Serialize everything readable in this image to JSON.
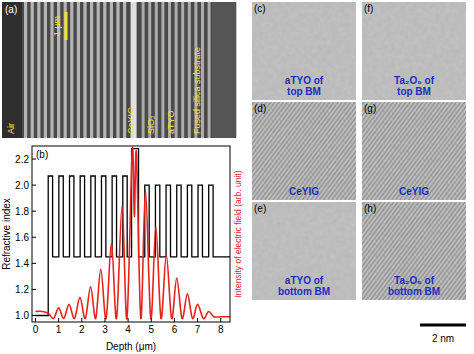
{
  "chart_data": {
    "type": "line",
    "title": "(b)",
    "x_label": "Depth (μm)",
    "y_label": "Refractive index",
    "y2_label": "Intensity of electric field (arb. unit)",
    "xlim": [
      -0.15,
      8.4
    ],
    "xticks": [
      0,
      1,
      2,
      3,
      4,
      5,
      6,
      7,
      8
    ],
    "ylim": [
      0.95,
      2.3
    ],
    "yticks": [
      {
        "value": 1.0,
        "label": "1.0"
      },
      {
        "value": 1.2,
        "label": "1.2"
      },
      {
        "value": 1.4,
        "label": "1.4"
      },
      {
        "value": 1.6,
        "label": "1.6"
      },
      {
        "value": 1.8,
        "label": "1.8"
      },
      {
        "value": 2.0,
        "label": "2.0"
      },
      {
        "value": 2.2,
        "label": "2.2"
      }
    ],
    "y2lim": [
      0,
      1
    ],
    "series": [
      {
        "color": "#000000",
        "line_style": "solid",
        "x": [
          0,
          0.55,
          0.55,
          0.74,
          0.74,
          1.01,
          1.01,
          1.2,
          1.2,
          1.47,
          1.47,
          1.66,
          1.66,
          1.93,
          1.93,
          2.12,
          2.12,
          2.39,
          2.39,
          2.58,
          2.58,
          2.85,
          2.85,
          3.04,
          3.04,
          3.31,
          3.31,
          3.5,
          3.5,
          3.77,
          3.77,
          3.96,
          3.96,
          4.15,
          4.15,
          4.45,
          4.45,
          4.72,
          4.72,
          4.91,
          4.91,
          5.18,
          5.18,
          5.37,
          5.37,
          5.64,
          5.64,
          5.83,
          5.83,
          6.1,
          6.1,
          6.29,
          6.29,
          6.56,
          6.56,
          6.75,
          6.75,
          7.02,
          7.02,
          7.21,
          7.21,
          7.48,
          7.48,
          7.67,
          7.67,
          8.4
        ],
        "values": [
          1.0,
          1.0,
          2.07,
          2.07,
          1.45,
          1.45,
          2.07,
          2.07,
          1.45,
          1.45,
          2.07,
          2.07,
          1.45,
          1.45,
          2.07,
          2.07,
          1.45,
          1.45,
          2.07,
          2.07,
          1.45,
          1.45,
          2.07,
          2.07,
          1.45,
          1.45,
          2.07,
          2.07,
          1.45,
          1.45,
          2.07,
          2.07,
          1.45,
          1.45,
          2.28,
          2.28,
          1.45,
          1.45,
          2.0,
          2.0,
          1.45,
          1.45,
          2.0,
          2.0,
          1.45,
          1.45,
          2.0,
          2.0,
          1.45,
          1.45,
          2.0,
          2.0,
          1.45,
          1.45,
          2.0,
          2.0,
          1.45,
          1.45,
          2.0,
          2.0,
          1.45,
          1.45,
          2.0,
          2.0,
          1.45,
          1.45
        ]
      },
      {
        "color": "#e8231d",
        "line_style": "smooth",
        "axis": "y2",
        "x": [
          0,
          0.3,
          0.55,
          0.78,
          1.0,
          1.22,
          1.45,
          1.68,
          1.92,
          2.15,
          2.38,
          2.6,
          2.82,
          3.05,
          3.28,
          3.5,
          3.74,
          3.95,
          4.18,
          4.27,
          4.36,
          4.55,
          4.75,
          4.98,
          5.2,
          5.42,
          5.65,
          5.88,
          6.1,
          6.33,
          6.56,
          6.78,
          7.0,
          7.25,
          7.48,
          7.7,
          8.0,
          8.4
        ],
        "values": [
          0.06,
          0.06,
          0.05,
          0.02,
          0.08,
          0.02,
          0.1,
          0.02,
          0.14,
          0.02,
          0.2,
          0.02,
          0.3,
          0.02,
          0.45,
          0.02,
          0.66,
          0.02,
          0.98,
          0.6,
          0.96,
          0.02,
          0.75,
          0.02,
          0.54,
          0.02,
          0.38,
          0.02,
          0.25,
          0.02,
          0.16,
          0.02,
          0.1,
          0.02,
          0.06,
          0.03,
          0.03,
          0.03
        ]
      }
    ]
  },
  "panel_a": {
    "label": "(a)",
    "scale_bar": "1 μm",
    "layers": [
      "Air",
      "CeYIG",
      "SiO₂",
      "aTYO",
      "Fused silica substrate"
    ]
  },
  "tem_panels": [
    {
      "label": "(c)",
      "caption": [
        "aTYO of",
        "top BM"
      ],
      "lattice": false
    },
    {
      "label": "(d)",
      "caption": [
        "CeYIG"
      ],
      "lattice": true
    },
    {
      "label": "(e)",
      "caption": [
        "aTYO of",
        "bottom BM"
      ],
      "lattice": false
    },
    {
      "label": "(f)",
      "caption": [
        "Ta₂O₅ of",
        "top BM"
      ],
      "lattice": false
    },
    {
      "label": "(g)",
      "caption": [
        "CeYIG"
      ],
      "lattice": true
    },
    {
      "label": "(h)",
      "caption": [
        "Ta₂O₅ of",
        "bottom BM"
      ],
      "lattice": true
    }
  ],
  "tem_scale_bar": "2 nm"
}
